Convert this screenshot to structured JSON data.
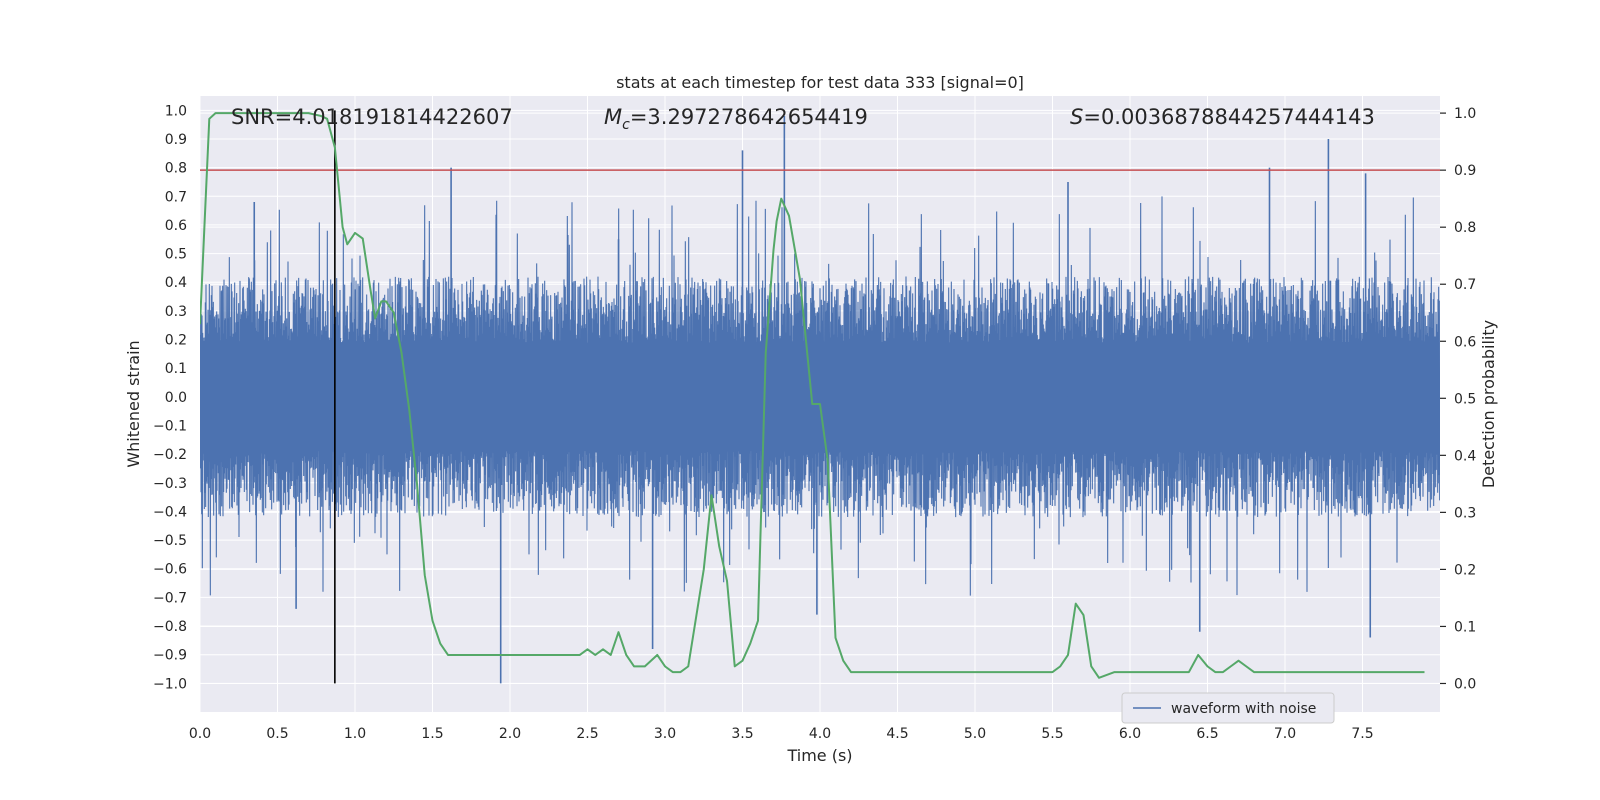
{
  "chart_data": {
    "type": "line",
    "title": "stats at each timestep for test data 333 [signal=0]",
    "xlabel": "Time (s)",
    "ylabel_left": "Whitened strain",
    "ylabel_right": "Detection probability",
    "xlim": [
      0.0,
      8.0
    ],
    "ylim_left": [
      -1.1,
      1.05
    ],
    "ylim_right": [
      -0.05,
      1.03
    ],
    "x_ticks": [
      "0.0",
      "0.5",
      "1.0",
      "1.5",
      "2.0",
      "2.5",
      "3.0",
      "3.5",
      "4.0",
      "4.5",
      "5.0",
      "5.5",
      "6.0",
      "6.5",
      "7.0",
      "7.5"
    ],
    "y_ticks_left": [
      "1.0",
      "0.9",
      "0.8",
      "0.7",
      "0.6",
      "0.5",
      "0.4",
      "0.3",
      "0.2",
      "0.1",
      "0.0",
      "−0.1",
      "−0.2",
      "−0.3",
      "−0.4",
      "−0.5",
      "−0.6",
      "−0.7",
      "−0.8",
      "−0.9",
      "−1.0"
    ],
    "y_ticks_right": [
      "1.0",
      "0.9",
      "0.8",
      "0.7",
      "0.6",
      "0.5",
      "0.4",
      "0.3",
      "0.2",
      "0.1",
      "0.0"
    ],
    "grid": true,
    "legend_position": "lower-right",
    "annotations": {
      "snr": "SNR=4.018191814422607",
      "mc_symbol": "M",
      "mc_sub": "c",
      "mc_value": "=3.297278642654419",
      "s_symbol": "S",
      "s_value": "=0.0036878844257444143"
    },
    "threshold": {
      "value_right_axis": 0.9,
      "color": "#c44e52"
    },
    "vertical_marker": {
      "x": 0.87,
      "y_from": -1.0,
      "y_to": 1.0,
      "color": "#000000"
    },
    "series": [
      {
        "name": "waveform with noise",
        "axis": "left",
        "color": "#4c72b0",
        "envelope_peaks_positive": [
          [
            1.62,
            0.8
          ],
          [
            3.5,
            0.86
          ],
          [
            3.77,
            0.98
          ],
          [
            7.28,
            0.9
          ],
          [
            2.7,
            0.55
          ],
          [
            5.6,
            0.75
          ],
          [
            6.9,
            0.8
          ],
          [
            7.52,
            0.78
          ],
          [
            0.35,
            0.68
          ]
        ],
        "envelope_peaks_negative": [
          [
            1.94,
            -1.0
          ],
          [
            2.92,
            -0.88
          ],
          [
            3.98,
            -0.76
          ],
          [
            6.45,
            -0.82
          ],
          [
            7.55,
            -0.84
          ],
          [
            0.62,
            -0.74
          ]
        ],
        "typical_amplitude": 0.42
      },
      {
        "axis": "right",
        "color": "#55a868",
        "x": [
          0.0,
          0.06,
          0.1,
          0.15,
          0.25,
          0.35,
          0.5,
          0.6,
          0.7,
          0.78,
          0.82,
          0.87,
          0.92,
          0.95,
          1.0,
          1.05,
          1.1,
          1.13,
          1.17,
          1.2,
          1.25,
          1.3,
          1.35,
          1.4,
          1.45,
          1.5,
          1.55,
          1.6,
          1.7,
          1.8,
          1.9,
          2.0,
          2.1,
          2.2,
          2.3,
          2.4,
          2.45,
          2.5,
          2.55,
          2.6,
          2.65,
          2.7,
          2.75,
          2.8,
          2.87,
          2.95,
          3.0,
          3.05,
          3.1,
          3.15,
          3.25,
          3.3,
          3.35,
          3.4,
          3.45,
          3.5,
          3.55,
          3.6,
          3.65,
          3.7,
          3.72,
          3.75,
          3.8,
          3.87,
          3.95,
          4.0,
          4.05,
          4.1,
          4.15,
          4.2,
          4.3,
          4.5,
          4.8,
          5.0,
          5.2,
          5.4,
          5.45,
          5.5,
          5.55,
          5.6,
          5.65,
          5.7,
          5.75,
          5.8,
          5.9,
          6.0,
          6.1,
          6.2,
          6.3,
          6.38,
          6.44,
          6.5,
          6.55,
          6.6,
          6.65,
          6.7,
          6.75,
          6.8,
          6.85,
          6.9,
          7.0,
          7.2,
          7.5,
          7.9
        ],
        "y": [
          0.63,
          0.99,
          1.0,
          1.0,
          1.0,
          1.0,
          1.0,
          1.0,
          1.0,
          0.995,
          0.99,
          0.94,
          0.8,
          0.77,
          0.79,
          0.78,
          0.69,
          0.64,
          0.67,
          0.67,
          0.65,
          0.58,
          0.48,
          0.35,
          0.19,
          0.11,
          0.07,
          0.05,
          0.05,
          0.05,
          0.05,
          0.05,
          0.05,
          0.05,
          0.05,
          0.05,
          0.05,
          0.06,
          0.05,
          0.06,
          0.05,
          0.09,
          0.05,
          0.03,
          0.03,
          0.05,
          0.03,
          0.02,
          0.02,
          0.03,
          0.2,
          0.33,
          0.24,
          0.18,
          0.03,
          0.04,
          0.07,
          0.11,
          0.58,
          0.76,
          0.81,
          0.85,
          0.82,
          0.71,
          0.49,
          0.49,
          0.39,
          0.08,
          0.04,
          0.02,
          0.02,
          0.02,
          0.02,
          0.02,
          0.02,
          0.02,
          0.02,
          0.02,
          0.03,
          0.05,
          0.14,
          0.12,
          0.03,
          0.01,
          0.02,
          0.02,
          0.02,
          0.02,
          0.02,
          0.02,
          0.05,
          0.03,
          0.02,
          0.02,
          0.03,
          0.04,
          0.03,
          0.02,
          0.02,
          0.02,
          0.02,
          0.02,
          0.02,
          0.02
        ]
      }
    ]
  }
}
